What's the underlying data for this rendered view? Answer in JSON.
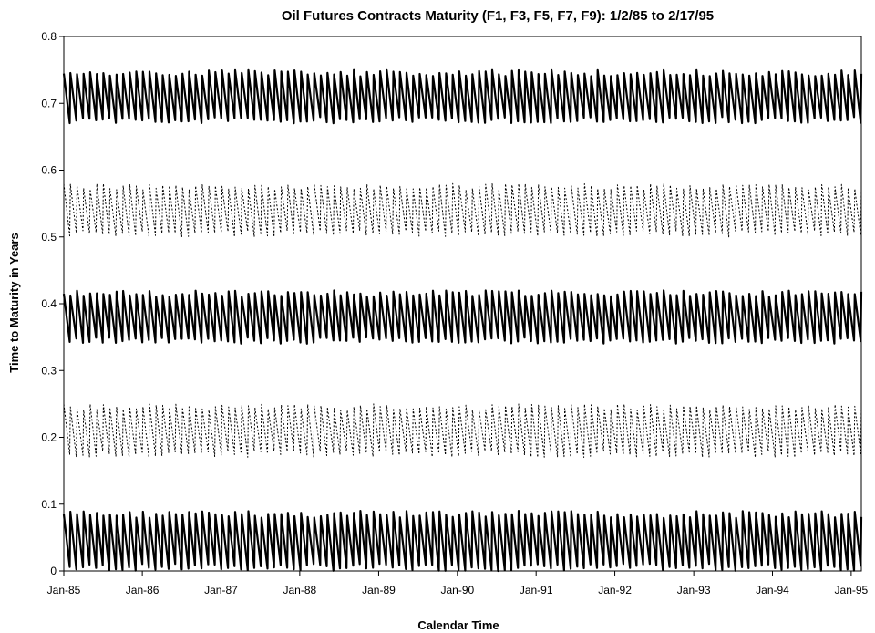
{
  "chart_data": {
    "type": "line",
    "title": "Oil Futures Contracts Maturity (F1, F3, F5, F7, F9): 1/2/85 to 2/17/95",
    "xlabel": "Calendar Time",
    "ylabel": "Time to Maturity in Years",
    "xlim": [
      "1985-01-02",
      "1995-02-17"
    ],
    "ylim": [
      0,
      0.8
    ],
    "x_ticks": [
      "Jan-85",
      "Jan-86",
      "Jan-87",
      "Jan-88",
      "Jan-89",
      "Jan-90",
      "Jan-91",
      "Jan-92",
      "Jan-93",
      "Jan-94",
      "Jan-95"
    ],
    "y_ticks": [
      "0",
      "0.1",
      "0.2",
      "0.3",
      "0.4",
      "0.5",
      "0.6",
      "0.7",
      "0.8"
    ],
    "grid": false,
    "legend": "none",
    "series": [
      {
        "style": "solid",
        "min": 0.0,
        "max": 0.09,
        "cycle_months": 1
      },
      {
        "style": "dotted",
        "min": 0.17,
        "max": 0.25,
        "cycle_months": 1
      },
      {
        "style": "solid",
        "min": 0.34,
        "max": 0.42,
        "cycle_months": 1
      },
      {
        "style": "dotted",
        "min": 0.5,
        "max": 0.58,
        "cycle_months": 1
      },
      {
        "style": "solid",
        "min": 0.67,
        "max": 0.75,
        "cycle_months": 1
      }
    ]
  }
}
